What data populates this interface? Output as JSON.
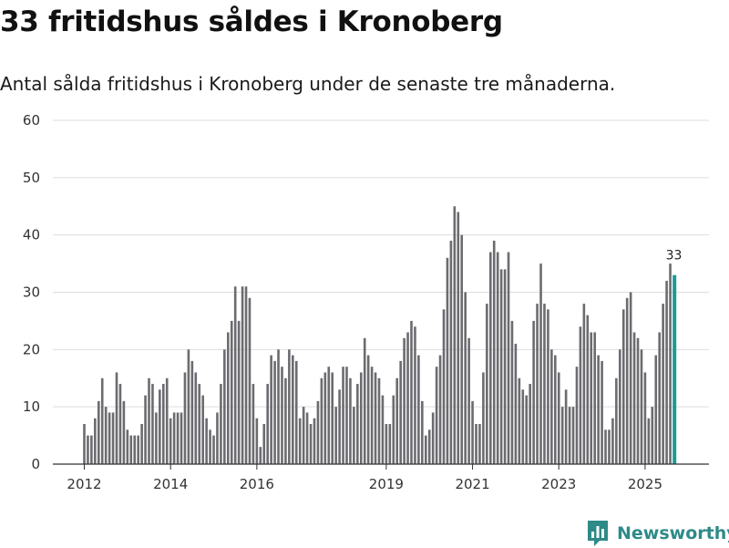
{
  "title": "33 fritidshus såldes i Kronoberg",
  "subtitle": "Antal sålda fritidshus i Kronoberg under de senaste tre månaderna.",
  "brand": {
    "name": "Newsworthy",
    "icon": "chart-logo-icon"
  },
  "colors": {
    "bar": "#6b6b70",
    "highlight": "#1a9a96",
    "grid": "#dddddd",
    "axis": "#333333",
    "brand": "#2e8a88"
  },
  "chart_data": {
    "type": "bar",
    "title": "33 fritidshus såldes i Kronoberg",
    "xlabel": "",
    "ylabel": "",
    "ylim": [
      0,
      60
    ],
    "yticks": [
      0,
      10,
      20,
      30,
      40,
      50,
      60
    ],
    "xticks": [
      {
        "label": "2012",
        "index": 0
      },
      {
        "label": "2014",
        "index": 24
      },
      {
        "label": "2016",
        "index": 48
      },
      {
        "label": "2019",
        "index": 84
      },
      {
        "label": "2021",
        "index": 108
      },
      {
        "label": "2023",
        "index": 132
      },
      {
        "label": "2025",
        "index": 156
      }
    ],
    "start": "2012-01",
    "frequency": "monthly (rolling three-month total)",
    "values": [
      7,
      5,
      5,
      8,
      11,
      15,
      10,
      9,
      9,
      16,
      14,
      11,
      6,
      5,
      5,
      5,
      7,
      12,
      15,
      14,
      9,
      13,
      14,
      15,
      8,
      9,
      9,
      9,
      16,
      20,
      18,
      16,
      14,
      12,
      8,
      6,
      5,
      9,
      14,
      20,
      23,
      25,
      31,
      25,
      31,
      31,
      29,
      14,
      8,
      3,
      7,
      14,
      19,
      18,
      20,
      17,
      15,
      20,
      19,
      18,
      8,
      10,
      9,
      7,
      8,
      11,
      15,
      16,
      17,
      16,
      10,
      13,
      17,
      17,
      15,
      10,
      14,
      16,
      22,
      19,
      17,
      16,
      15,
      12,
      7,
      7,
      12,
      15,
      18,
      22,
      23,
      25,
      24,
      19,
      11,
      5,
      6,
      9,
      17,
      19,
      27,
      36,
      39,
      45,
      44,
      40,
      30,
      22,
      11,
      7,
      7,
      16,
      28,
      37,
      39,
      37,
      34,
      34,
      37,
      25,
      21,
      15,
      13,
      12,
      14,
      25,
      28,
      35,
      28,
      27,
      20,
      19,
      16,
      10,
      13,
      10,
      10,
      17,
      24,
      28,
      26,
      23,
      23,
      19,
      18,
      6,
      6,
      8,
      15,
      20,
      27,
      29,
      30,
      23,
      22,
      20,
      16,
      8,
      10,
      19,
      23,
      28,
      32,
      35,
      33
    ],
    "highlight_index": 164,
    "annotation": {
      "label": "33",
      "index": 164
    }
  }
}
